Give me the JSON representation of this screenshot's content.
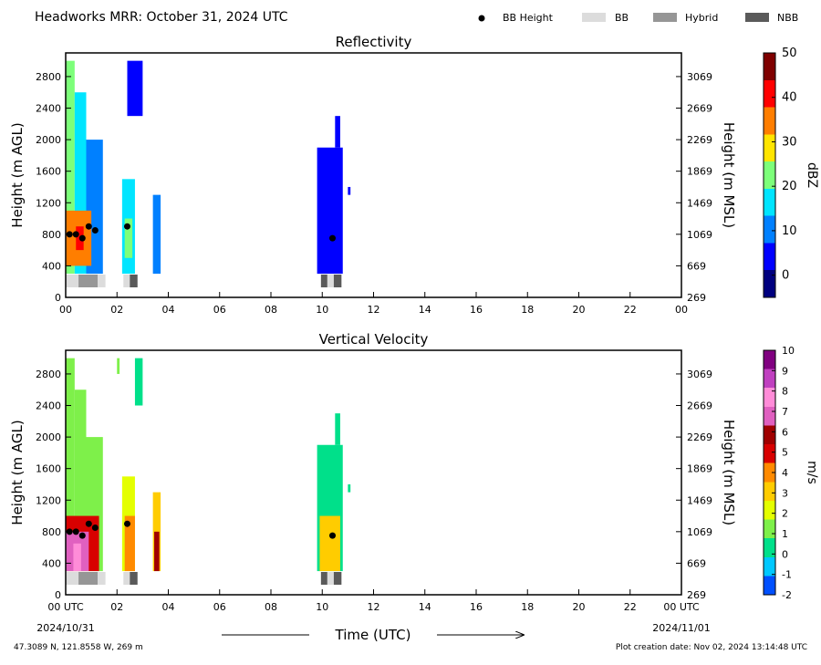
{
  "header": {
    "title": "Headworks MRR:  October 31, 2024 UTC",
    "legend": [
      {
        "label": "BB Height",
        "symbol": "dot",
        "color": "#000000"
      },
      {
        "label": "BB",
        "symbol": "box",
        "color": "#dcdcdc"
      },
      {
        "label": "Hybrid",
        "symbol": "box",
        "color": "#969696"
      },
      {
        "label": "NBB",
        "symbol": "box",
        "color": "#5a5a5a"
      }
    ]
  },
  "chart_data": [
    {
      "type": "heatmap",
      "title": "Reflectivity",
      "ylabel": "Height (m AGL)",
      "y2label": "Height (m MSL)",
      "xlim": [
        0,
        24
      ],
      "ylim": [
        0,
        3100
      ],
      "x_ticks": [
        "00",
        "02",
        "04",
        "06",
        "08",
        "10",
        "12",
        "14",
        "16",
        "18",
        "20",
        "22",
        "00"
      ],
      "y_ticks": [
        0,
        400,
        800,
        1200,
        1600,
        2000,
        2400,
        2800
      ],
      "y2_ticks": [
        269,
        669,
        1069,
        1469,
        1869,
        2269,
        2669,
        3069
      ],
      "colorbar": {
        "label": "dBZ",
        "min": -5,
        "max": 50,
        "ticks": [
          0,
          10,
          20,
          30,
          40,
          50
        ],
        "colors": [
          "#00007f",
          "#0000ff",
          "#0080ff",
          "#00e5ff",
          "#7dff7a",
          "#ffe500",
          "#ff7e00",
          "#ff0000",
          "#7f0000"
        ]
      },
      "bb_height_points": [
        [
          0.15,
          800
        ],
        [
          0.4,
          800
        ],
        [
          0.65,
          750
        ],
        [
          0.9,
          900
        ],
        [
          1.15,
          850
        ],
        [
          2.4,
          900
        ],
        [
          10.4,
          750
        ]
      ],
      "band_type_segments": [
        {
          "start": 0.0,
          "end": 0.5,
          "type": "BB"
        },
        {
          "start": 0.5,
          "end": 1.25,
          "type": "Hybrid"
        },
        {
          "start": 1.25,
          "end": 1.55,
          "type": "BB"
        },
        {
          "start": 2.25,
          "end": 2.5,
          "type": "BB"
        },
        {
          "start": 2.5,
          "end": 2.8,
          "type": "NBB"
        },
        {
          "start": 9.95,
          "end": 10.2,
          "type": "NBB"
        },
        {
          "start": 10.2,
          "end": 10.45,
          "type": "BB"
        },
        {
          "start": 10.45,
          "end": 10.75,
          "type": "NBB"
        }
      ],
      "echo_regions": [
        {
          "x0": 0.0,
          "x1": 0.35,
          "y0": 300,
          "y1": 3000,
          "value": 20
        },
        {
          "x0": 0.35,
          "x1": 0.8,
          "y0": 300,
          "y1": 2600,
          "value": 18
        },
        {
          "x0": 0.8,
          "x1": 1.45,
          "y0": 300,
          "y1": 2000,
          "value": 12
        },
        {
          "x0": 2.2,
          "x1": 2.7,
          "y0": 300,
          "y1": 1500,
          "value": 15
        },
        {
          "x0": 2.4,
          "x1": 3.0,
          "y0": 2300,
          "y1": 3000,
          "value": 2
        },
        {
          "x0": 3.4,
          "x1": 3.7,
          "y0": 300,
          "y1": 1300,
          "value": 8
        },
        {
          "x0": 9.8,
          "x1": 10.8,
          "y0": 300,
          "y1": 1900,
          "value": 5
        },
        {
          "x0": 10.5,
          "x1": 10.7,
          "y0": 1900,
          "y1": 2300,
          "value": 2
        },
        {
          "x0": 11.0,
          "x1": 11.1,
          "y0": 1300,
          "y1": 1400,
          "value": 2
        }
      ],
      "core_regions": [
        {
          "x0": 0.0,
          "x1": 1.0,
          "y0": 400,
          "y1": 1100,
          "value": 35
        },
        {
          "x0": 0.4,
          "x1": 0.7,
          "y0": 600,
          "y1": 900,
          "value": 42
        },
        {
          "x0": 2.3,
          "x1": 2.6,
          "y0": 500,
          "y1": 1000,
          "value": 25
        }
      ]
    },
    {
      "type": "heatmap",
      "title": "Vertical Velocity",
      "ylabel": "Height (m AGL)",
      "y2label": "Height (m MSL)",
      "xlabel": "Time (UTC)",
      "xlim": [
        0,
        24
      ],
      "ylim": [
        0,
        3100
      ],
      "x_ticks": [
        "00 UTC",
        "02",
        "04",
        "06",
        "08",
        "10",
        "12",
        "14",
        "16",
        "18",
        "20",
        "22",
        "00 UTC"
      ],
      "y_ticks": [
        0,
        400,
        800,
        1200,
        1600,
        2000,
        2400,
        2800
      ],
      "y2_ticks": [
        269,
        669,
        1069,
        1469,
        1869,
        2269,
        2669,
        3069
      ],
      "colorbar": {
        "label": "m/s",
        "min": -2,
        "max": 10,
        "ticks": [
          -2,
          -1,
          0,
          1,
          2,
          3,
          4,
          5,
          6,
          7,
          8,
          9,
          10
        ],
        "colors": [
          "#0050ff",
          "#00c8ff",
          "#00e08a",
          "#7ef04a",
          "#e4ff00",
          "#ffcc00",
          "#ff8a00",
          "#d80000",
          "#a00000",
          "#e060c0",
          "#ff8cd8",
          "#c040c0",
          "#800080"
        ]
      },
      "bb_height_points": [
        [
          0.15,
          800
        ],
        [
          0.4,
          800
        ],
        [
          0.65,
          750
        ],
        [
          0.9,
          900
        ],
        [
          1.15,
          850
        ],
        [
          2.4,
          900
        ],
        [
          10.4,
          750
        ]
      ],
      "band_type_segments": [
        {
          "start": 0.0,
          "end": 0.5,
          "type": "BB"
        },
        {
          "start": 0.5,
          "end": 1.25,
          "type": "Hybrid"
        },
        {
          "start": 1.25,
          "end": 1.55,
          "type": "BB"
        },
        {
          "start": 2.25,
          "end": 2.5,
          "type": "BB"
        },
        {
          "start": 2.5,
          "end": 2.8,
          "type": "NBB"
        },
        {
          "start": 9.95,
          "end": 10.2,
          "type": "NBB"
        },
        {
          "start": 10.2,
          "end": 10.45,
          "type": "BB"
        },
        {
          "start": 10.45,
          "end": 10.75,
          "type": "NBB"
        }
      ],
      "echo_regions": [
        {
          "x0": 0.0,
          "x1": 0.35,
          "y0": 300,
          "y1": 3000,
          "value": 1.5
        },
        {
          "x0": 0.35,
          "x1": 0.8,
          "y0": 300,
          "y1": 2600,
          "value": 1.0
        },
        {
          "x0": 0.8,
          "x1": 1.45,
          "y0": 300,
          "y1": 2000,
          "value": 0.8
        },
        {
          "x0": 2.2,
          "x1": 2.7,
          "y0": 300,
          "y1": 1500,
          "value": 2.0
        },
        {
          "x0": 2.0,
          "x1": 2.1,
          "y0": 2800,
          "y1": 3000,
          "value": 1.5
        },
        {
          "x0": 2.7,
          "x1": 3.0,
          "y0": 2400,
          "y1": 3000,
          "value": 0.5
        },
        {
          "x0": 3.4,
          "x1": 3.7,
          "y0": 300,
          "y1": 1300,
          "value": 3.0
        },
        {
          "x0": 9.8,
          "x1": 10.8,
          "y0": 300,
          "y1": 1900,
          "value": 0.7
        },
        {
          "x0": 10.5,
          "x1": 10.7,
          "y0": 1900,
          "y1": 2300,
          "value": 0.5
        },
        {
          "x0": 11.0,
          "x1": 11.1,
          "y0": 1300,
          "y1": 1400,
          "value": 0.5
        }
      ],
      "core_regions": [
        {
          "x0": 0.0,
          "x1": 1.3,
          "y0": 300,
          "y1": 1000,
          "value": 4.5
        },
        {
          "x0": 0.0,
          "x1": 0.9,
          "y0": 300,
          "y1": 800,
          "value": 6.5
        },
        {
          "x0": 0.3,
          "x1": 0.6,
          "y0": 300,
          "y1": 650,
          "value": 8.0
        },
        {
          "x0": 2.3,
          "x1": 2.7,
          "y0": 300,
          "y1": 1000,
          "value": 4.0
        },
        {
          "x0": 3.45,
          "x1": 3.65,
          "y0": 300,
          "y1": 800,
          "value": 6.0
        },
        {
          "x0": 9.9,
          "x1": 10.7,
          "y0": 300,
          "y1": 1000,
          "value": 3.0
        }
      ]
    }
  ],
  "footer": {
    "start_date": "2024/10/31",
    "end_date": "2024/11/01",
    "location": "47.3089 N, 121.8558 W, 269 m",
    "creation": "Plot creation date: Nov 02, 2024 13:14:48 UTC"
  }
}
